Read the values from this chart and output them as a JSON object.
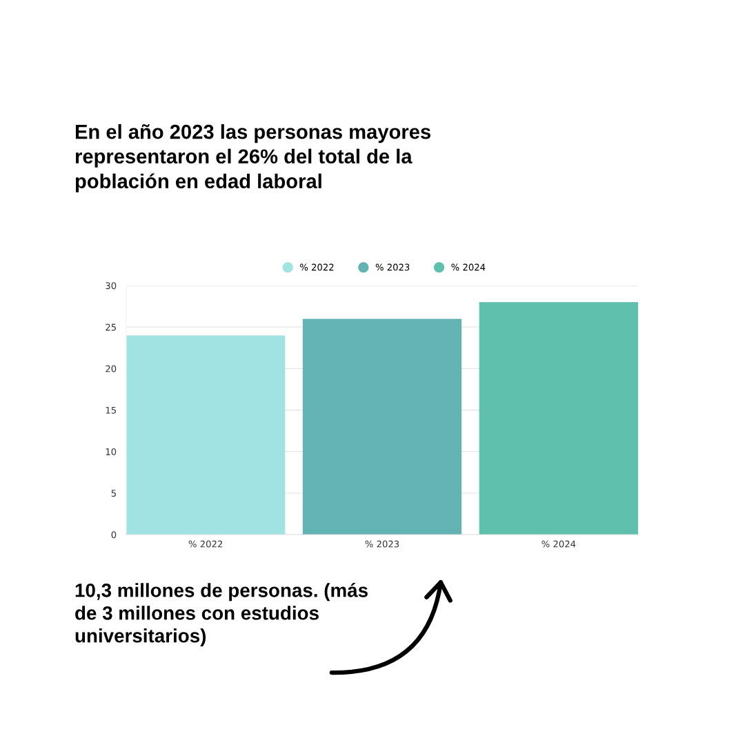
{
  "chart_data": {
    "type": "bar",
    "title": "En el año 2023 las personas mayores representaron el 26% del total de la población en edad laboral",
    "categories": [
      "% 2022",
      "% 2023",
      "% 2024"
    ],
    "series": [
      {
        "name": "% 2022",
        "color": "#a0e3e2",
        "values": [
          24,
          null,
          null
        ]
      },
      {
        "name": "% 2023",
        "color": "#64b3b4",
        "values": [
          null,
          26,
          null
        ]
      },
      {
        "name": "% 2024",
        "color": "#5fc0ae",
        "values": [
          null,
          null,
          28
        ]
      }
    ],
    "ylim": [
      0,
      30
    ],
    "yticks": [
      0,
      5,
      10,
      15,
      20,
      25,
      30
    ],
    "grid": "y",
    "legend": "top",
    "annotations": [
      "10,3 millones de personas. (más de 3 millones con estudios universitarios)"
    ]
  }
}
